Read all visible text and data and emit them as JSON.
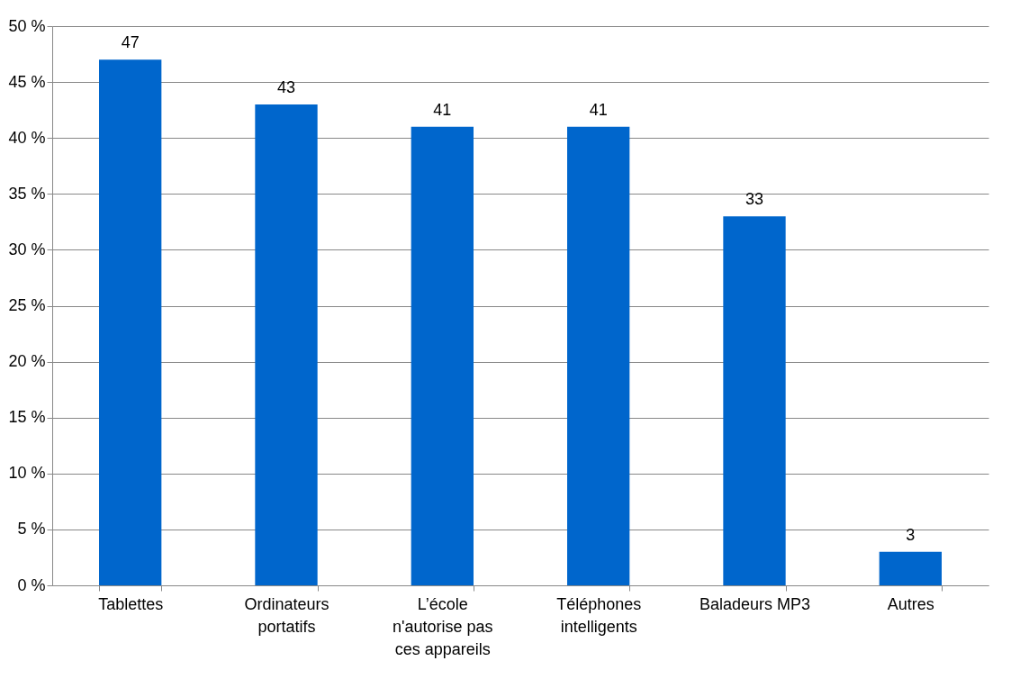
{
  "chart_data": {
    "type": "bar",
    "categories": [
      "Tablettes",
      "Ordinateurs portatifs",
      "L’école n'autorise pas ces appareils",
      "Téléphones intelligents",
      "Baladeurs MP3",
      "Autres"
    ],
    "values": [
      47,
      43,
      41,
      41,
      33,
      3
    ],
    "color": "#0066cc",
    "ylim": [
      0,
      50
    ],
    "yticks": [
      {
        "value": 0,
        "label": "0 %"
      },
      {
        "value": 5,
        "label": "5 %"
      },
      {
        "value": 10,
        "label": "10 %"
      },
      {
        "value": 15,
        "label": "15 %"
      },
      {
        "value": 20,
        "label": "20 %"
      },
      {
        "value": 25,
        "label": "25 %"
      },
      {
        "value": 30,
        "label": "30 %"
      },
      {
        "value": 35,
        "label": "35 %"
      },
      {
        "value": 40,
        "label": "40 %"
      },
      {
        "value": 45,
        "label": "45 %"
      },
      {
        "value": 50,
        "label": "50 %"
      }
    ],
    "grid": "y",
    "data_labels": true
  }
}
